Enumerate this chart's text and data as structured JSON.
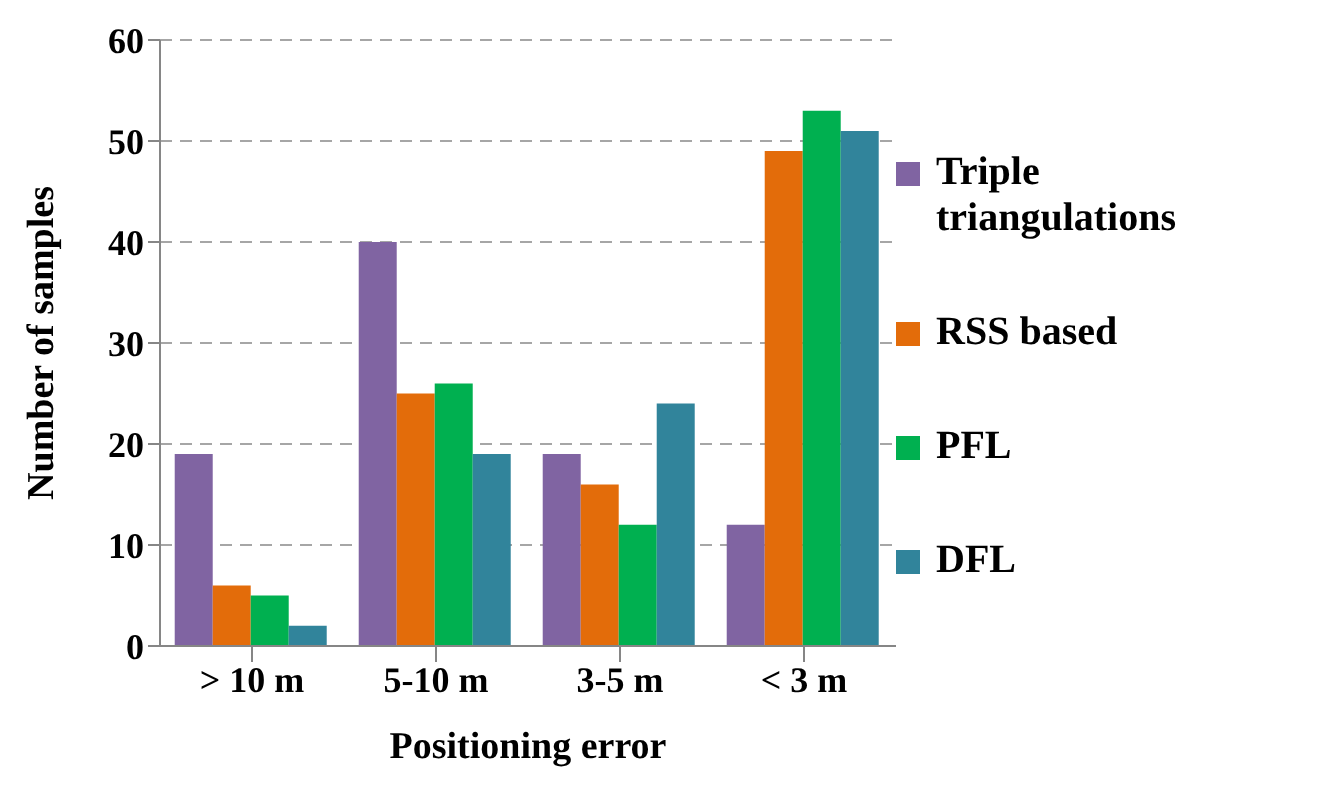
{
  "chart_data": {
    "type": "bar",
    "xlabel": "Positioning error",
    "ylabel": "Number of samples",
    "categories": [
      "> 10 m",
      "5-10 m",
      "3-5 m",
      "< 3 m"
    ],
    "series": [
      {
        "name": "Triple triangulations",
        "color": "#8064a2",
        "values": [
          19,
          40,
          19,
          12
        ]
      },
      {
        "name": "RSS based",
        "color": "#e36c0a",
        "values": [
          6,
          25,
          16,
          49
        ]
      },
      {
        "name": "PFL",
        "color": "#00b050",
        "values": [
          5,
          26,
          12,
          53
        ]
      },
      {
        "name": "DFL",
        "color": "#31849b",
        "values": [
          2,
          19,
          24,
          51
        ]
      }
    ],
    "ylim": [
      0,
      60
    ],
    "yticks": [
      0,
      10,
      20,
      30,
      40,
      50,
      60
    ],
    "grid": "y",
    "legend": "right"
  }
}
